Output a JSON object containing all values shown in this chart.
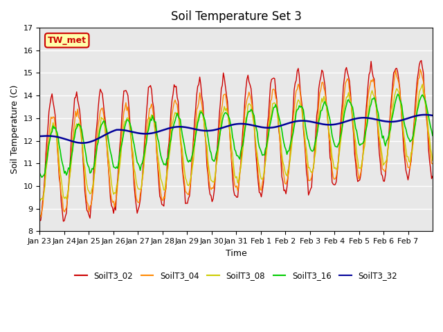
{
  "title": "Soil Temperature Set 3",
  "xlabel": "Time",
  "ylabel": "Soil Temperature (C)",
  "ylim": [
    8.0,
    17.0
  ],
  "yticks": [
    8.0,
    9.0,
    10.0,
    11.0,
    12.0,
    13.0,
    14.0,
    15.0,
    16.0,
    17.0
  ],
  "xtick_labels": [
    "Jan 23",
    "Jan 24",
    "Jan 25",
    "Jan 26",
    "Jan 27",
    "Jan 28",
    "Jan 29",
    "Jan 30",
    "Jan 31",
    "Feb 1",
    "Feb 2",
    "Feb 3",
    "Feb 4",
    "Feb 5",
    "Feb 6",
    "Feb 7"
  ],
  "colors": {
    "SoilT3_02": "#CC0000",
    "SoilT3_04": "#FF8800",
    "SoilT3_08": "#CCCC00",
    "SoilT3_16": "#00CC00",
    "SoilT3_32": "#000099"
  },
  "background_color": "#E8E8E8",
  "tw_met_label": "TW_met",
  "tw_met_bg": "#FFFFAA",
  "tw_met_border": "#CC0000"
}
